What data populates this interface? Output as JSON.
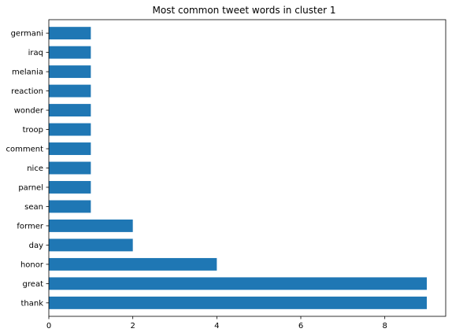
{
  "chart_data": {
    "type": "bar",
    "orientation": "horizontal",
    "title": "Most common tweet words in cluster 1",
    "xlabel": "",
    "ylabel": "",
    "categories": [
      "thank",
      "great",
      "honor",
      "day",
      "former",
      "sean",
      "parnel",
      "nice",
      "comment",
      "troop",
      "wonder",
      "reaction",
      "melania",
      "iraq",
      "germani"
    ],
    "values": [
      9,
      9,
      4,
      2,
      2,
      1,
      1,
      1,
      1,
      1,
      1,
      1,
      1,
      1,
      1
    ],
    "xlim": [
      0,
      9.45
    ],
    "xticks": [
      0,
      2,
      4,
      6,
      8
    ],
    "grid": false,
    "bar_color": "#1f77b4"
  }
}
